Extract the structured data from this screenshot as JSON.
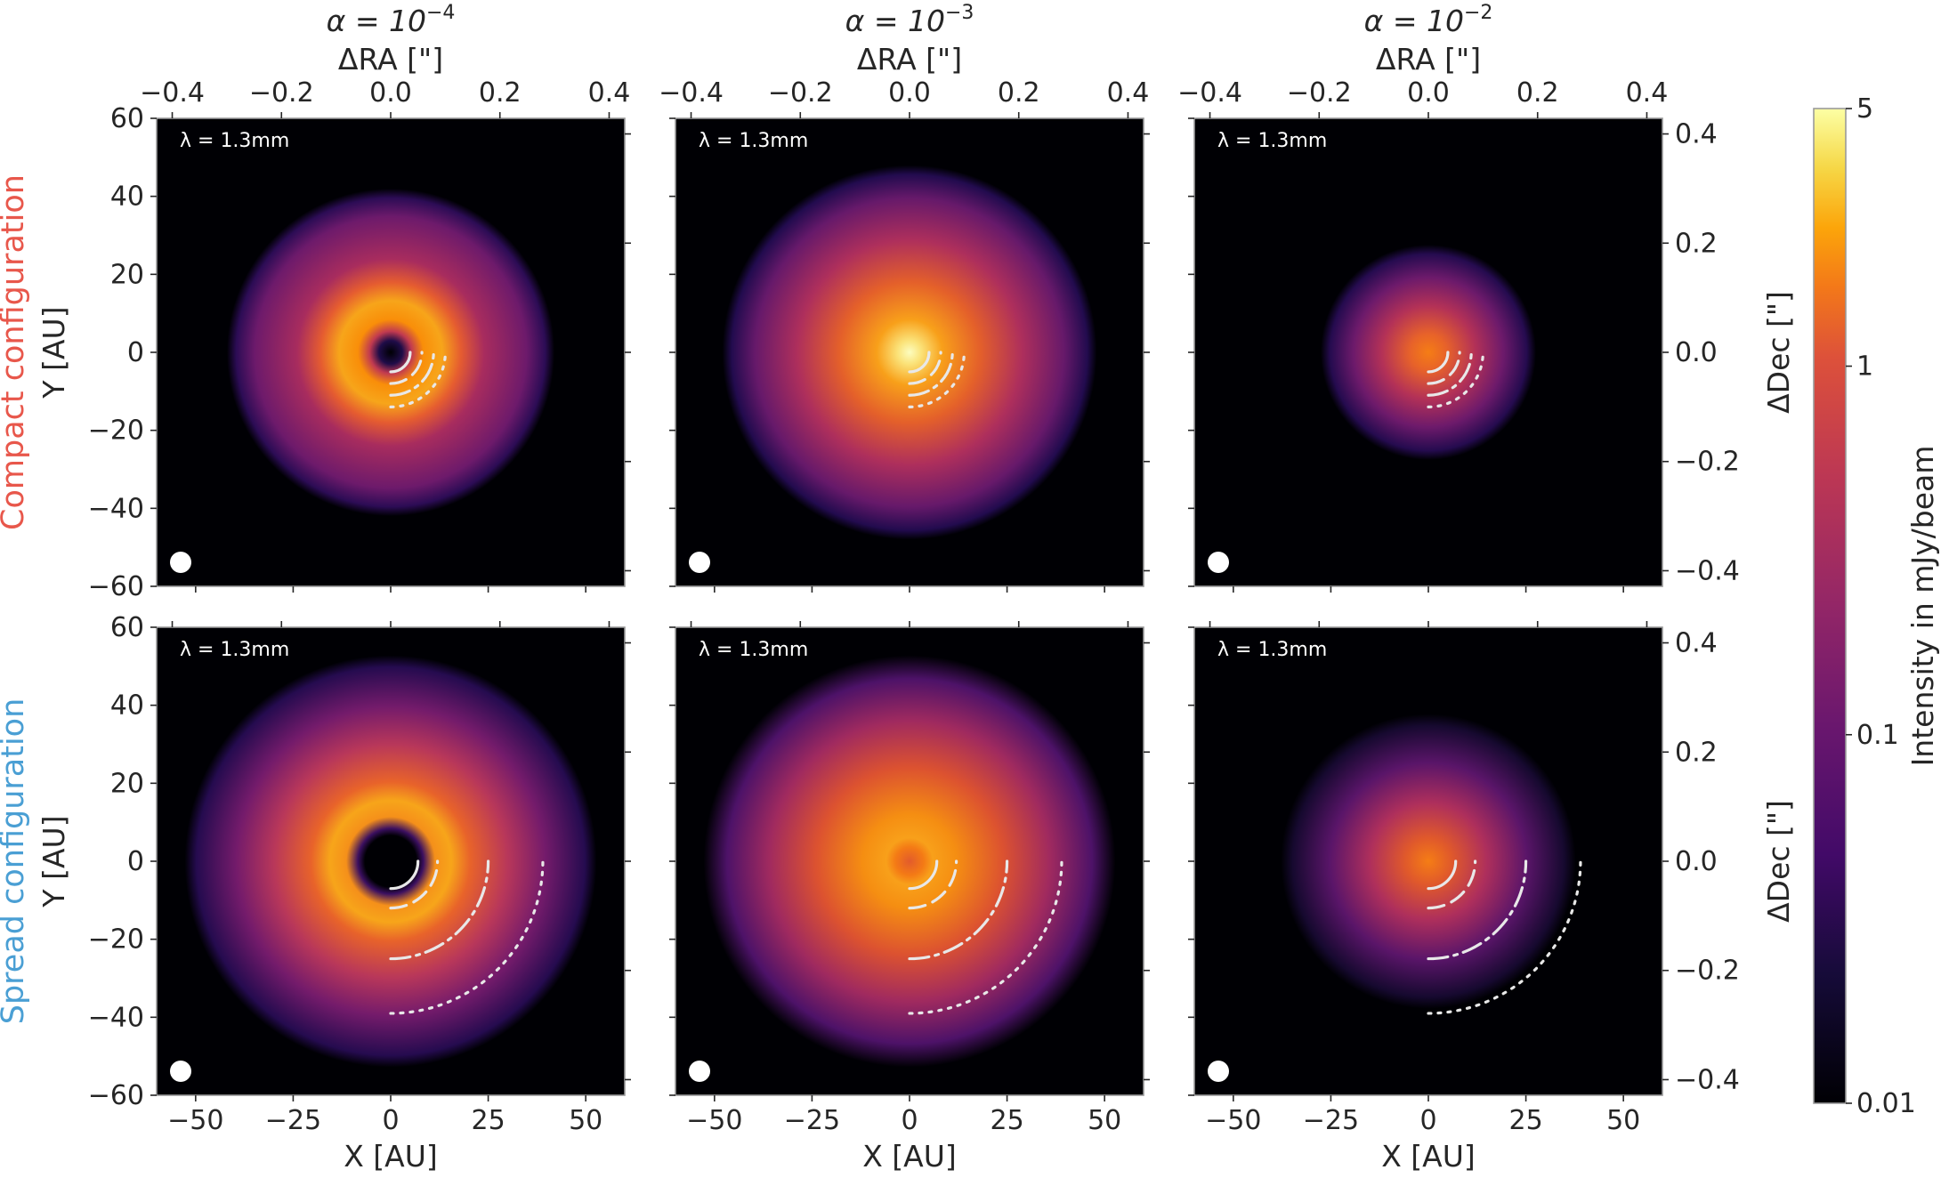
{
  "figure": {
    "columns": [
      {
        "title": "α = 10",
        "exponent": "−4",
        "ra_label": "ΔRA [\"]"
      },
      {
        "title": "α = 10",
        "exponent": "−3",
        "ra_label": "ΔRA [\"]"
      },
      {
        "title": "α = 10",
        "exponent": "−2",
        "ra_label": "ΔRA [\"]"
      }
    ],
    "rows": [
      {
        "label": "Compact configuration",
        "label_color": "#e8574b",
        "ylabel": "Y [AU]",
        "dec_label": "ΔDec [\"]"
      },
      {
        "label": "Spread configuration",
        "label_color": "#4a9fd4",
        "ylabel": "Y [AU]",
        "dec_label": "ΔDec [\"]"
      }
    ],
    "xlabel": "X [AU]",
    "wavelength_label": "λ = 1.3mm",
    "x_ticks": [
      "−50",
      "−25",
      "0",
      "25",
      "50"
    ],
    "y_ticks": [
      "60",
      "40",
      "20",
      "0",
      "−20",
      "−40",
      "−60"
    ],
    "ra_ticks": [
      "−0.4",
      "−0.2",
      "0.0",
      "0.2",
      "0.4"
    ],
    "dec_ticks": [
      "0.4",
      "0.2",
      "0.0",
      "−0.2",
      "−0.4"
    ],
    "colorbar": {
      "label": "Intensity in mJy/beam",
      "ticks": [
        "5",
        "1",
        "0.1",
        "0.01"
      ],
      "scale": "log",
      "range": [
        0.01,
        5
      ],
      "colormap": "inferno"
    }
  },
  "chart_data": {
    "type": "heatmap",
    "x_range_au": [
      -60,
      60
    ],
    "y_range_au": [
      -60,
      60
    ],
    "colormap": "inferno",
    "panels": [
      {
        "row": "Compact configuration",
        "alpha": "1e-4",
        "morphology": "ring",
        "ring_radius_au": 8,
        "outer_radius_au": 42,
        "peak_mJy_beam": 2.5
      },
      {
        "row": "Compact configuration",
        "alpha": "1e-3",
        "morphology": "centrally peaked",
        "outer_radius_au": 48,
        "peak_mJy_beam": 5
      },
      {
        "row": "Compact configuration",
        "alpha": "1e-2",
        "morphology": "compact",
        "outer_radius_au": 27,
        "peak_mJy_beam": 1.2
      },
      {
        "row": "Spread configuration",
        "alpha": "1e-4",
        "morphology": "ring with cavity",
        "ring_radius_au": 16,
        "outer_radius_au": 52,
        "peak_mJy_beam": 2.5
      },
      {
        "row": "Spread configuration",
        "alpha": "1e-3",
        "morphology": "broad ring",
        "ring_radius_au": 5,
        "outer_radius_au": 53,
        "peak_mJy_beam": 2.0
      },
      {
        "row": "Spread configuration",
        "alpha": "1e-2",
        "morphology": "compact",
        "outer_radius_au": 38,
        "peak_mJy_beam": 1.0
      }
    ],
    "planet_arcs_compact_au": [
      5,
      8,
      11,
      14
    ],
    "planet_arcs_spread_au": [
      7,
      12,
      25,
      39
    ]
  }
}
